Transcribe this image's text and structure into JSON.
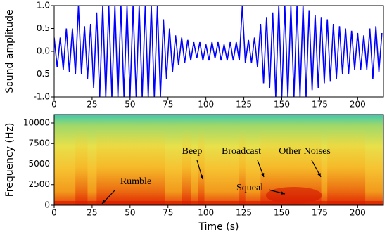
{
  "chart_data": [
    {
      "type": "line",
      "ylabel": "Sound amplitude",
      "color": "#0000ff",
      "x": [
        0,
        2,
        4,
        6,
        8,
        10,
        12,
        14,
        16,
        18,
        20,
        22,
        24,
        26,
        28,
        30,
        32,
        34,
        36,
        38,
        40,
        42,
        44,
        46,
        48,
        50,
        52,
        54,
        56,
        58,
        60,
        62,
        64,
        66,
        68,
        70,
        72,
        74,
        76,
        78,
        80,
        82,
        84,
        86,
        88,
        90,
        92,
        94,
        96,
        98,
        100,
        102,
        104,
        106,
        108,
        110,
        112,
        114,
        116,
        118,
        120,
        122,
        124,
        126,
        128,
        130,
        132,
        134,
        136,
        138,
        140,
        142,
        144,
        146,
        148,
        150,
        152,
        154,
        156,
        158,
        160,
        162,
        164,
        166,
        168,
        170,
        172,
        174,
        176,
        178,
        180,
        182,
        184,
        186,
        188,
        190,
        192,
        194,
        196,
        198,
        200,
        202,
        204,
        206,
        208,
        210,
        212,
        214,
        216
      ],
      "values": [
        0.3,
        -0.35,
        0.3,
        -0.4,
        0.5,
        -0.45,
        0.5,
        -0.5,
        1.0,
        -0.5,
        0.55,
        -0.6,
        0.6,
        -0.8,
        0.85,
        -1.0,
        1.0,
        -1.0,
        1.0,
        -1.0,
        1.0,
        -1.0,
        1.0,
        -1.0,
        1.0,
        -1.0,
        1.0,
        -1.0,
        1.0,
        -1.0,
        1.0,
        -1.0,
        1.0,
        -1.0,
        1.0,
        -1.0,
        0.7,
        -0.6,
        0.5,
        -0.45,
        0.35,
        -0.3,
        0.3,
        -0.25,
        0.25,
        -0.2,
        0.2,
        -0.15,
        0.2,
        -0.2,
        0.15,
        -0.2,
        0.2,
        -0.15,
        0.2,
        -0.2,
        0.15,
        -0.2,
        0.2,
        -0.2,
        0.2,
        -0.2,
        1.0,
        -0.25,
        0.25,
        -0.25,
        0.3,
        -0.35,
        0.6,
        -0.7,
        0.75,
        -0.8,
        0.85,
        -1.0,
        1.0,
        -1.0,
        1.0,
        -1.0,
        1.0,
        -1.0,
        1.0,
        -1.0,
        1.0,
        -1.0,
        0.9,
        -0.85,
        0.8,
        -0.8,
        0.75,
        -0.7,
        0.7,
        -0.65,
        0.6,
        -0.6,
        0.55,
        -0.5,
        0.5,
        -0.5,
        0.45,
        -0.4,
        0.4,
        -0.4,
        0.35,
        -0.4,
        0.5,
        -0.6,
        0.55,
        -0.45,
        0.4
      ],
      "xlim": [
        0,
        217
      ],
      "xticks": [
        0,
        25,
        50,
        75,
        100,
        125,
        150,
        175,
        200
      ],
      "ylim": [
        -1,
        1
      ],
      "yticks": [
        {
          "value": -1,
          "label": "-1.0"
        },
        {
          "value": -0.5,
          "label": "-0.5"
        },
        {
          "value": 0,
          "label": "0.0"
        },
        {
          "value": 0.5,
          "label": "0.5"
        },
        {
          "value": 1,
          "label": "1.0"
        }
      ]
    },
    {
      "type": "spectrogram",
      "xlabel": "Time (s)",
      "ylabel": "Frequency (Hz)",
      "xlim": [
        0,
        217
      ],
      "xticks": [
        0,
        25,
        50,
        75,
        100,
        125,
        150,
        175,
        200
      ],
      "ylim": [
        0,
        11025
      ],
      "yticks": [
        0,
        2500,
        5000,
        7500,
        10000
      ],
      "annotations": [
        "Rumble",
        "Beep",
        "Broadcast",
        "Other Noises",
        "Squeal"
      ]
    }
  ]
}
